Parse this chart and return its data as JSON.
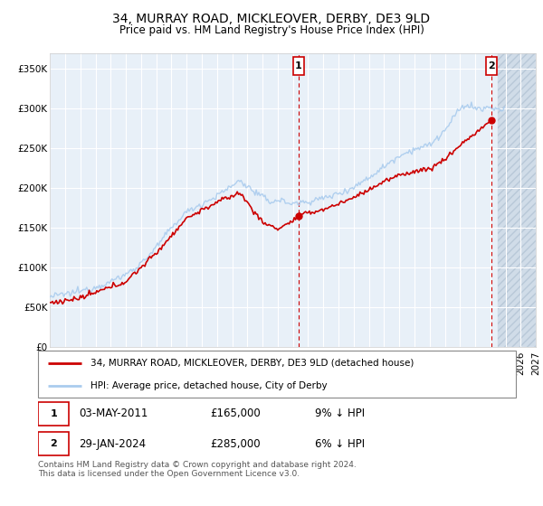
{
  "title": "34, MURRAY ROAD, MICKLEOVER, DERBY, DE3 9LD",
  "subtitle": "Price paid vs. HM Land Registry's House Price Index (HPI)",
  "legend_line1": "34, MURRAY ROAD, MICKLEOVER, DERBY, DE3 9LD (detached house)",
  "legend_line2": "HPI: Average price, detached house, City of Derby",
  "footnote": "Contains HM Land Registry data © Crown copyright and database right 2024.\nThis data is licensed under the Open Government Licence v3.0.",
  "annotation1": {
    "label": "1",
    "date": "03-MAY-2011",
    "price": "£165,000",
    "info": "9% ↓ HPI"
  },
  "annotation2": {
    "label": "2",
    "date": "29-JAN-2024",
    "price": "£285,000",
    "info": "6% ↓ HPI"
  },
  "hpi_color": "#aaccee",
  "price_color": "#cc0000",
  "background_plot": "#e8f0f8",
  "grid_color": "#ffffff",
  "ylim": [
    0,
    370000
  ],
  "yticks": [
    0,
    50000,
    100000,
    150000,
    200000,
    250000,
    300000,
    350000
  ],
  "ytick_labels": [
    "£0",
    "£50K",
    "£100K",
    "£150K",
    "£200K",
    "£250K",
    "£300K",
    "£350K"
  ],
  "year_start": 1995,
  "year_end": 2027,
  "sale1_year": 2011.37,
  "sale2_year": 2024.08,
  "sale1_price": 165000,
  "sale2_price": 285000
}
